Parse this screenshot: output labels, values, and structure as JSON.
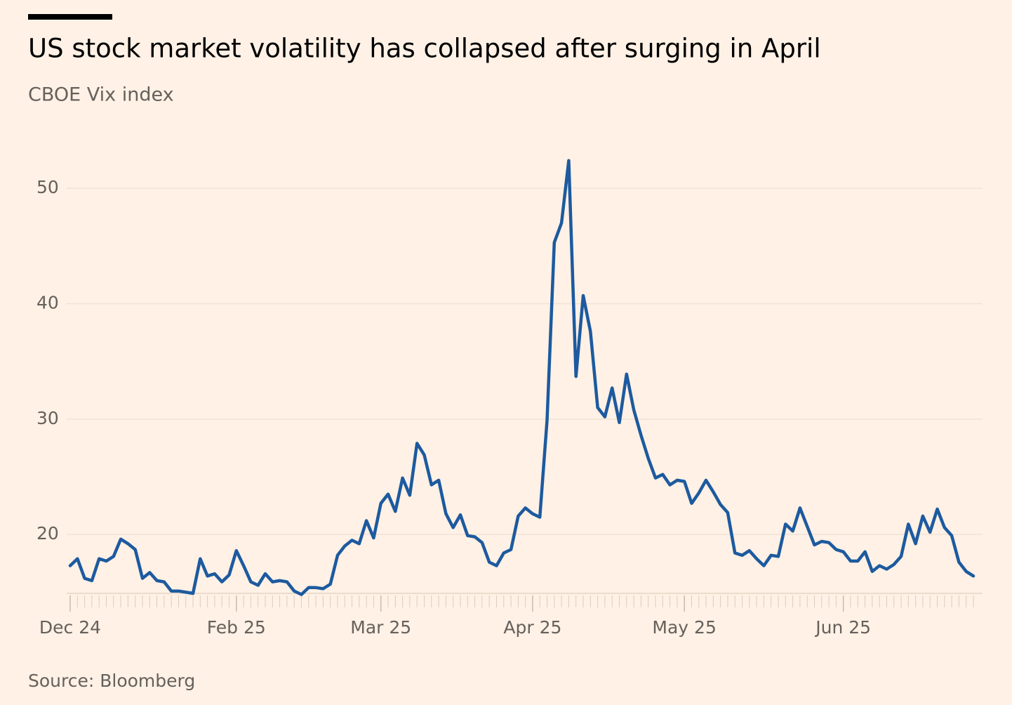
{
  "chart_data": {
    "type": "line",
    "title": "US stock market volatility has collapsed after surging in April",
    "subtitle": "CBOE Vix index",
    "source": "Source: Bloomberg",
    "series": [
      {
        "name": "CBOE Vix index",
        "color": "#1d5a9f",
        "values": [
          17.3,
          17.9,
          16.2,
          16.0,
          17.9,
          17.7,
          18.1,
          19.6,
          19.2,
          18.7,
          16.2,
          16.7,
          16.0,
          15.9,
          15.1,
          15.1,
          15.0,
          14.9,
          17.9,
          16.4,
          16.6,
          15.9,
          16.5,
          18.6,
          17.3,
          15.9,
          15.6,
          16.6,
          15.9,
          16.0,
          15.9,
          15.1,
          14.8,
          15.4,
          15.4,
          15.3,
          15.7,
          18.2,
          19.0,
          19.5,
          19.2,
          21.2,
          19.7,
          22.7,
          23.5,
          22.0,
          24.9,
          23.4,
          27.9,
          26.9,
          24.3,
          24.7,
          21.8,
          20.6,
          21.7,
          19.9,
          19.8,
          19.3,
          17.6,
          17.3,
          18.4,
          18.7,
          21.6,
          22.3,
          21.8,
          21.5,
          29.9,
          45.3,
          47.0,
          52.4,
          33.7,
          40.7,
          37.6,
          31.0,
          30.2,
          32.7,
          29.7,
          33.9,
          30.8,
          28.6,
          26.6,
          24.9,
          25.2,
          24.3,
          24.7,
          24.6,
          22.7,
          23.6,
          24.7,
          23.7,
          22.6,
          21.9,
          18.4,
          18.2,
          18.6,
          17.9,
          17.3,
          18.2,
          18.1,
          20.9,
          20.3,
          22.3,
          20.7,
          19.1,
          19.4,
          19.3,
          18.7,
          18.5,
          17.7,
          17.7,
          18.5,
          16.8,
          17.3,
          17.0,
          17.4,
          18.1,
          20.9,
          19.2,
          21.6,
          20.2,
          22.2,
          20.6,
          19.9,
          17.6,
          16.8,
          16.4
        ]
      }
    ],
    "xlim": [
      0,
      125
    ],
    "xticks": [
      {
        "value": 0,
        "label": "Dec 24"
      },
      {
        "value": 23,
        "label": "Feb 25"
      },
      {
        "value": 43,
        "label": "Mar 25"
      },
      {
        "value": 64,
        "label": "Apr 25"
      },
      {
        "value": 85,
        "label": "May 25"
      },
      {
        "value": 107,
        "label": "Jun 25"
      }
    ],
    "ylim": [
      14.9,
      55
    ],
    "yticks": [
      20,
      30,
      40,
      50
    ],
    "grid": true
  }
}
